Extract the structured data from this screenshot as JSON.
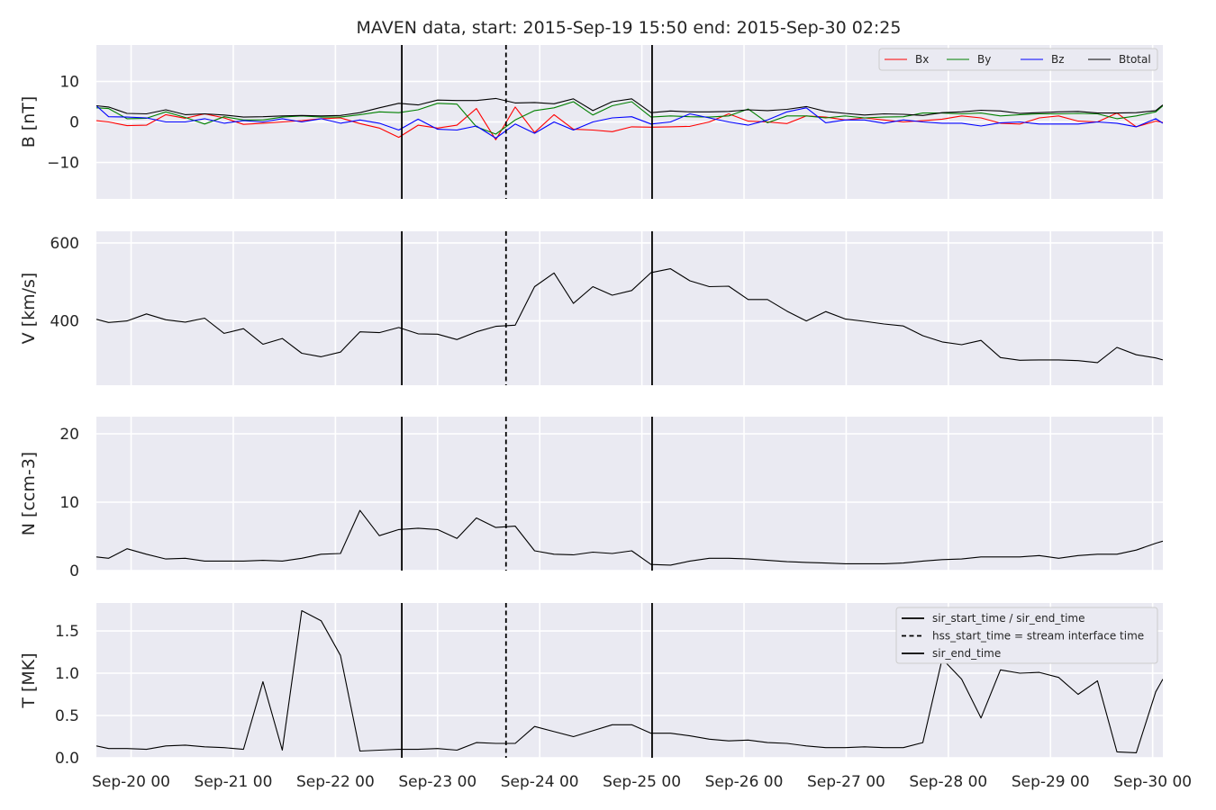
{
  "figure": {
    "title": "MAVEN data, start: 2015-Sep-19 15:50  end: 2015-Sep-30 02:25"
  },
  "colors": {
    "panel_bg": "#EAEAF2",
    "grid": "#FFFFFF",
    "Bx": "#FF0000",
    "By": "#008000",
    "Bz": "#0000FF",
    "black": "#000000"
  },
  "time_axis": {
    "unit": "days since 2015-09-19 00:00",
    "xlim": [
      0.66,
      11.1
    ],
    "ticks": [
      {
        "t": 1,
        "label": "Sep-20 00"
      },
      {
        "t": 2,
        "label": "Sep-21 00"
      },
      {
        "t": 3,
        "label": "Sep-22 00"
      },
      {
        "t": 4,
        "label": "Sep-23 00"
      },
      {
        "t": 5,
        "label": "Sep-24 00"
      },
      {
        "t": 6,
        "label": "Sep-25 00"
      },
      {
        "t": 7,
        "label": "Sep-26 00"
      },
      {
        "t": 8,
        "label": "Sep-27 00"
      },
      {
        "t": 9,
        "label": "Sep-28 00"
      },
      {
        "t": 10,
        "label": "Sep-29 00"
      },
      {
        "t": 11,
        "label": "Sep-30 00"
      }
    ]
  },
  "event_lines": [
    {
      "t": 3.65,
      "style": "solid"
    },
    {
      "t": 4.67,
      "style": "dashed"
    },
    {
      "t": 6.1,
      "style": "solid"
    }
  ],
  "chart_data": [
    {
      "id": "B",
      "type": "line",
      "ylabel": "B [nT]",
      "ylim": [
        -19,
        19
      ],
      "yticks": [
        -10,
        0,
        10
      ],
      "legend": {
        "placement": "top-right",
        "entries": [
          "Bx",
          "By",
          "Bz",
          "Btotal"
        ]
      },
      "x": [
        0.66,
        0.78,
        0.96,
        1.15,
        1.34,
        1.53,
        1.72,
        1.91,
        2.1,
        2.29,
        2.48,
        2.67,
        2.86,
        3.05,
        3.24,
        3.43,
        3.62,
        3.81,
        4.0,
        4.19,
        4.38,
        4.57,
        4.76,
        4.95,
        5.14,
        5.33,
        5.52,
        5.71,
        5.9,
        6.09,
        6.28,
        6.47,
        6.66,
        6.85,
        7.04,
        7.23,
        7.42,
        7.61,
        7.8,
        7.99,
        8.18,
        8.37,
        8.56,
        8.75,
        8.94,
        9.13,
        9.32,
        9.51,
        9.7,
        9.89,
        10.08,
        10.27,
        10.46,
        10.65,
        10.84,
        11.03,
        11.1
      ],
      "series": [
        {
          "name": "Bx",
          "color": "#FF0000",
          "values": [
            0.3,
            0.0,
            -0.9,
            -0.8,
            1.8,
            0.9,
            2.0,
            1.0,
            -0.6,
            -0.3,
            0.0,
            0.3,
            0.8,
            1.0,
            -0.4,
            -1.5,
            -3.8,
            -0.8,
            -1.5,
            -0.8,
            3.3,
            -4.4,
            3.7,
            -2.6,
            1.8,
            -1.8,
            -2.0,
            -2.4,
            -1.2,
            -1.3,
            -1.2,
            -1.1,
            0.0,
            2.0,
            0.2,
            0.0,
            -0.4,
            1.5,
            1.2,
            0.5,
            1.0,
            0.5,
            0.0,
            0.3,
            0.7,
            1.5,
            1.0,
            -0.3,
            -0.5,
            1.0,
            1.5,
            0.2,
            0.0,
            2.2,
            -1.2,
            0.2,
            -0.1
          ]
        },
        {
          "name": "By",
          "color": "#008000",
          "values": [
            3.5,
            3.3,
            0.8,
            0.9,
            2.5,
            1.1,
            -0.5,
            1.3,
            0.5,
            0.5,
            1.2,
            1.5,
            1.2,
            1.2,
            1.8,
            2.5,
            2.3,
            3.0,
            4.6,
            4.4,
            -1.2,
            -3.0,
            0.5,
            2.8,
            3.5,
            5.0,
            1.7,
            4.0,
            5.0,
            1.2,
            1.5,
            1.3,
            1.2,
            1.5,
            3.2,
            -0.2,
            1.5,
            1.5,
            1.0,
            1.5,
            1.0,
            1.2,
            1.3,
            2.2,
            2.2,
            2.0,
            2.2,
            1.5,
            1.8,
            2.0,
            2.0,
            2.1,
            2.0,
            0.8,
            1.5,
            2.5,
            4.0
          ]
        },
        {
          "name": "Bz",
          "color": "#0000FF",
          "values": [
            4.0,
            1.3,
            1.2,
            1.0,
            0.0,
            0.0,
            0.8,
            -0.3,
            0.3,
            0.0,
            0.8,
            0.0,
            0.8,
            -0.3,
            0.5,
            -0.3,
            -2.0,
            0.7,
            -1.8,
            -2.0,
            -1.0,
            -4.0,
            -0.5,
            -2.8,
            0.0,
            -2.0,
            0.0,
            1.0,
            1.3,
            -0.5,
            0.0,
            2.0,
            1.0,
            0.0,
            -0.8,
            0.5,
            2.5,
            3.5,
            -0.2,
            0.5,
            0.5,
            -0.3,
            0.5,
            0.0,
            -0.3,
            -0.3,
            -1.0,
            -0.2,
            0.0,
            -0.5,
            -0.5,
            -0.5,
            0.0,
            -0.3,
            -1.2,
            0.8,
            -0.3
          ]
        },
        {
          "name": "Btotal",
          "color": "#000000",
          "values": [
            4.0,
            3.7,
            2.1,
            2.0,
            3.0,
            1.8,
            2.0,
            1.7,
            1.2,
            1.3,
            1.5,
            1.6,
            1.5,
            1.6,
            2.3,
            3.5,
            4.6,
            4.2,
            5.4,
            5.3,
            5.3,
            5.8,
            4.7,
            4.8,
            4.5,
            5.7,
            2.8,
            5.0,
            5.7,
            2.3,
            2.7,
            2.5,
            2.5,
            2.6,
            3.0,
            2.8,
            3.1,
            3.8,
            2.6,
            2.1,
            1.7,
            2.0,
            1.9,
            1.6,
            2.3,
            2.5,
            2.9,
            2.7,
            2.1,
            2.3,
            2.5,
            2.6,
            2.2,
            2.2,
            2.3,
            2.8,
            4.2
          ]
        }
      ]
    },
    {
      "id": "V",
      "type": "line",
      "ylabel": "V [km/s]",
      "ylim": [
        235,
        630
      ],
      "yticks": [
        400,
        600
      ],
      "series": [
        {
          "name": "",
          "color": "#000000",
          "x": [
            0.66,
            0.78,
            0.96,
            1.15,
            1.34,
            1.53,
            1.72,
            1.91,
            2.1,
            2.29,
            2.48,
            2.67,
            2.86,
            3.05,
            3.24,
            3.43,
            3.62,
            3.81,
            4.0,
            4.19,
            4.38,
            4.57,
            4.76,
            4.95,
            5.14,
            5.33,
            5.52,
            5.71,
            5.9,
            6.09,
            6.28,
            6.47,
            6.66,
            6.85,
            7.04,
            7.23,
            7.42,
            7.61,
            7.8,
            7.99,
            8.18,
            8.37,
            8.56,
            8.75,
            8.94,
            9.13,
            9.32,
            9.51,
            9.7,
            9.89,
            10.08,
            10.27,
            10.46,
            10.65,
            10.84,
            11.03,
            11.1
          ],
          "values": [
            404,
            396,
            400,
            418,
            403,
            397,
            407,
            368,
            380,
            340,
            355,
            317,
            308,
            320,
            372,
            370,
            383,
            367,
            366,
            352,
            372,
            386,
            389,
            488,
            523,
            445,
            488,
            466,
            478,
            524,
            534,
            503,
            488,
            489,
            455,
            455,
            425,
            400,
            424,
            405,
            399,
            392,
            387,
            362,
            346,
            339,
            350,
            306,
            299,
            300,
            300,
            298,
            293,
            332,
            313,
            305,
            300
          ]
        }
      ]
    },
    {
      "id": "N",
      "type": "line",
      "ylabel": "N [ccm-3]",
      "ylim": [
        0,
        22.5
      ],
      "yticks": [
        0,
        10,
        20
      ],
      "series": [
        {
          "name": "",
          "color": "#000000",
          "x": [
            0.66,
            0.78,
            0.96,
            1.15,
            1.34,
            1.53,
            1.72,
            1.91,
            2.1,
            2.29,
            2.48,
            2.67,
            2.86,
            3.05,
            3.24,
            3.43,
            3.62,
            3.81,
            4.0,
            4.19,
            4.38,
            4.57,
            4.76,
            4.95,
            5.14,
            5.33,
            5.52,
            5.71,
            5.9,
            6.09,
            6.28,
            6.47,
            6.66,
            6.85,
            7.04,
            7.23,
            7.42,
            7.61,
            7.8,
            7.99,
            8.18,
            8.37,
            8.56,
            8.75,
            8.94,
            9.13,
            9.32,
            9.51,
            9.7,
            9.89,
            10.08,
            10.27,
            10.46,
            10.65,
            10.84,
            11.03,
            11.1
          ],
          "values": [
            2.0,
            1.8,
            3.2,
            2.4,
            1.7,
            1.8,
            1.4,
            1.4,
            1.4,
            1.5,
            1.4,
            1.8,
            2.4,
            2.5,
            8.8,
            5.1,
            6.0,
            6.2,
            6.0,
            4.7,
            7.7,
            6.3,
            6.5,
            2.9,
            2.4,
            2.3,
            2.7,
            2.5,
            2.9,
            0.9,
            0.8,
            1.4,
            1.8,
            1.8,
            1.7,
            1.5,
            1.3,
            1.2,
            1.1,
            1.0,
            1.0,
            1.0,
            1.1,
            1.4,
            1.6,
            1.7,
            2.0,
            2.0,
            2.0,
            2.2,
            1.8,
            2.2,
            2.4,
            2.4,
            3.0,
            4.0,
            4.3
          ]
        }
      ]
    },
    {
      "id": "T",
      "type": "line",
      "ylabel": "T [MK]",
      "ylim": [
        0,
        1.83
      ],
      "yticks": [
        0.0,
        0.5,
        1.0,
        1.5
      ],
      "yticklabels": [
        "0.0",
        "0.5",
        "1.0",
        "1.5"
      ],
      "legend": {
        "placement": "top-right",
        "entries": [
          "sir_start_time / sir_end_time",
          "hss_start_time = stream interface time",
          "sir_end_time"
        ]
      },
      "series": [
        {
          "name": "",
          "color": "#000000",
          "x": [
            0.66,
            0.78,
            0.96,
            1.15,
            1.34,
            1.53,
            1.72,
            1.91,
            2.1,
            2.29,
            2.48,
            2.67,
            2.86,
            3.05,
            3.24,
            3.43,
            3.62,
            3.81,
            4.0,
            4.19,
            4.38,
            4.57,
            4.76,
            4.95,
            5.14,
            5.33,
            5.52,
            5.71,
            5.9,
            6.09,
            6.28,
            6.47,
            6.66,
            6.85,
            7.04,
            7.23,
            7.42,
            7.61,
            7.8,
            7.99,
            8.18,
            8.37,
            8.56,
            8.75,
            8.94,
            9.13,
            9.32,
            9.51,
            9.7,
            9.89,
            10.08,
            10.27,
            10.46,
            10.65,
            10.84,
            11.03,
            11.1
          ],
          "values": [
            0.14,
            0.11,
            0.11,
            0.1,
            0.14,
            0.15,
            0.13,
            0.12,
            0.1,
            0.9,
            0.09,
            1.74,
            1.62,
            1.21,
            0.08,
            0.09,
            0.1,
            0.1,
            0.11,
            0.09,
            0.18,
            0.17,
            0.17,
            0.37,
            0.31,
            0.25,
            0.32,
            0.39,
            0.39,
            0.29,
            0.29,
            0.26,
            0.22,
            0.2,
            0.21,
            0.18,
            0.17,
            0.14,
            0.12,
            0.12,
            0.13,
            0.12,
            0.12,
            0.18,
            1.17,
            0.93,
            0.47,
            1.04,
            1.0,
            1.01,
            0.95,
            0.75,
            0.91,
            0.07,
            0.06,
            0.78,
            0.93
          ]
        }
      ]
    }
  ]
}
